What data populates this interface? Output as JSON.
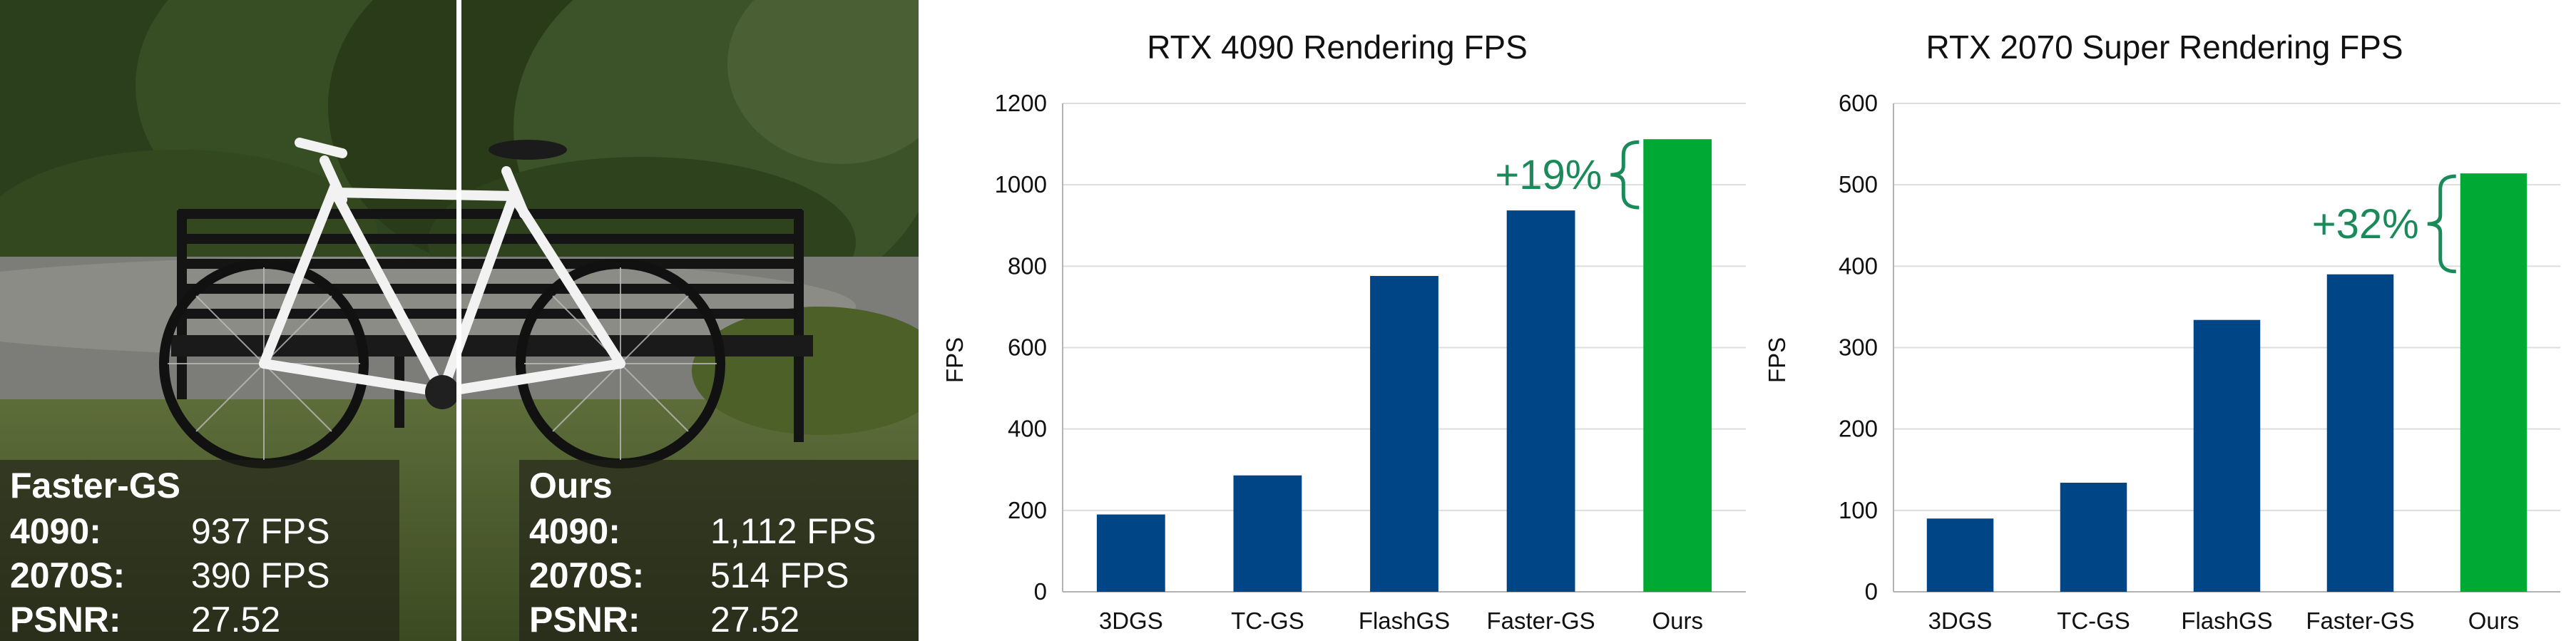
{
  "photo": {
    "left_box": {
      "title": "Faster-GS",
      "rows": [
        {
          "key": "4090:",
          "value": "937 FPS"
        },
        {
          "key": "2070S:",
          "value": "390 FPS"
        },
        {
          "key": "PSNR:",
          "value": "27.52"
        }
      ]
    },
    "right_box": {
      "title": "Ours",
      "rows": [
        {
          "key": "4090:",
          "value": "1,112 FPS"
        },
        {
          "key": "2070S:",
          "value": "514 FPS"
        },
        {
          "key": "PSNR:",
          "value": "27.52"
        }
      ]
    }
  },
  "colors": {
    "baseline_bar": "#004586",
    "ours_bar": "#00a933",
    "annotation": "#1a8a5a",
    "grid": "#dddddd"
  },
  "chart_data": [
    {
      "type": "bar",
      "title": "RTX 4090 Rendering FPS",
      "ylabel": "FPS",
      "ylim": [
        0,
        1200
      ],
      "yticks": [
        "0",
        "200",
        "400",
        "600",
        "800",
        "1000",
        "1200"
      ],
      "categories": [
        "3DGS",
        "TC-GS",
        "FlashGS",
        "Faster-GS",
        "Ours"
      ],
      "values": [
        190,
        286,
        776,
        937,
        1112
      ],
      "annotation": "+19%",
      "grid": true
    },
    {
      "type": "bar",
      "title": "RTX 2070 Super Rendering FPS",
      "ylabel": "FPS",
      "ylim": [
        0,
        600
      ],
      "yticks": [
        "0",
        "100",
        "200",
        "300",
        "400",
        "500",
        "600"
      ],
      "categories": [
        "3DGS",
        "TC-GS",
        "FlashGS",
        "Faster-GS",
        "Ours"
      ],
      "values": [
        90,
        134,
        334,
        390,
        514
      ],
      "annotation": "+32%",
      "grid": true
    }
  ]
}
